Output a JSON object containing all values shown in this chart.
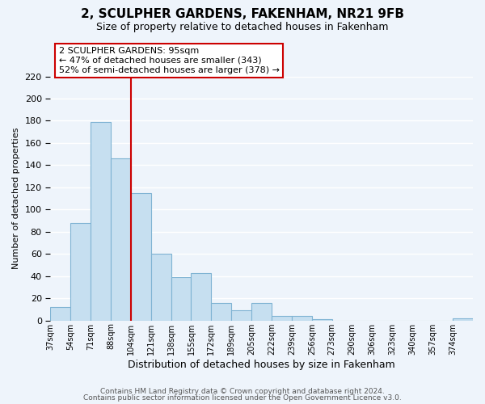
{
  "title": "2, SCULPHER GARDENS, FAKENHAM, NR21 9FB",
  "subtitle": "Size of property relative to detached houses in Fakenham",
  "xlabel": "Distribution of detached houses by size in Fakenham",
  "ylabel": "Number of detached properties",
  "bar_labels": [
    "37sqm",
    "54sqm",
    "71sqm",
    "88sqm",
    "104sqm",
    "121sqm",
    "138sqm",
    "155sqm",
    "172sqm",
    "189sqm",
    "205sqm",
    "222sqm",
    "239sqm",
    "256sqm",
    "273sqm",
    "290sqm",
    "306sqm",
    "323sqm",
    "340sqm",
    "357sqm",
    "374sqm"
  ],
  "bar_values": [
    12,
    88,
    179,
    146,
    115,
    60,
    39,
    43,
    16,
    9,
    16,
    4,
    4,
    1,
    0,
    0,
    0,
    0,
    0,
    0,
    2
  ],
  "bar_color": "#c6dff0",
  "bar_edge_color": "#7fb3d3",
  "vline_x": 3.0,
  "vline_color": "#cc0000",
  "annotation_title": "2 SCULPHER GARDENS: 95sqm",
  "annotation_line1": "← 47% of detached houses are smaller (343)",
  "annotation_line2": "52% of semi-detached houses are larger (378) →",
  "box_color": "white",
  "box_edge_color": "#cc0000",
  "ylim": [
    0,
    220
  ],
  "yticks": [
    0,
    20,
    40,
    60,
    80,
    100,
    120,
    140,
    160,
    180,
    200,
    220
  ],
  "footer_line1": "Contains HM Land Registry data © Crown copyright and database right 2024.",
  "footer_line2": "Contains public sector information licensed under the Open Government Licence v3.0.",
  "bg_color": "#eef4fb",
  "grid_color": "white"
}
